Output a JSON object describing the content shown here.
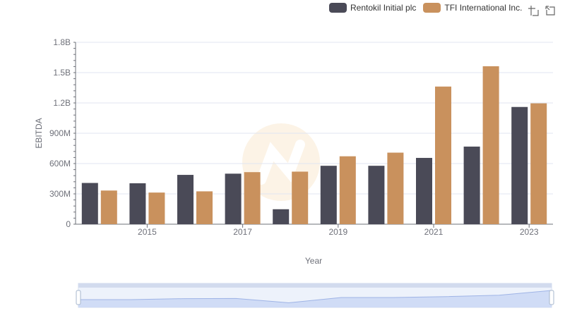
{
  "legend": {
    "items": [
      {
        "label": "Rentokil Initial plc",
        "color": "#4a4a57"
      },
      {
        "label": "TFI International Inc.",
        "color": "#c9915d"
      }
    ]
  },
  "toolbar": {
    "icons": [
      "zoom-icon",
      "restore-icon"
    ]
  },
  "chart_data": {
    "type": "bar",
    "x": [
      2014,
      2015,
      2016,
      2017,
      2018,
      2019,
      2020,
      2021,
      2022,
      2023
    ],
    "x_tick_labels": [
      "2015",
      "2017",
      "2019",
      "2021",
      "2023"
    ],
    "xlabel": "Year",
    "ylabel": "EBITDA",
    "ylim": [
      0,
      1800000000
    ],
    "y_ticks": [
      0,
      300000000,
      600000000,
      900000000,
      1200000000,
      1500000000,
      1800000000
    ],
    "y_tick_labels": [
      "0",
      "300M",
      "600M",
      "900M",
      "1.2B",
      "1.5B",
      "1.8B"
    ],
    "series": [
      {
        "name": "Rentokil Initial plc",
        "color": "#4a4a57",
        "values": [
          408000000,
          405000000,
          488000000,
          500000000,
          148000000,
          578000000,
          578000000,
          656000000,
          768000000,
          1160000000
        ]
      },
      {
        "name": "TFI International Inc.",
        "color": "#c9915d",
        "values": [
          333000000,
          313000000,
          325000000,
          515000000,
          520000000,
          672000000,
          708000000,
          1362000000,
          1563000000,
          1196000000
        ]
      }
    ],
    "grid": true,
    "legend_position": "top-right",
    "zoom_slider": true
  }
}
